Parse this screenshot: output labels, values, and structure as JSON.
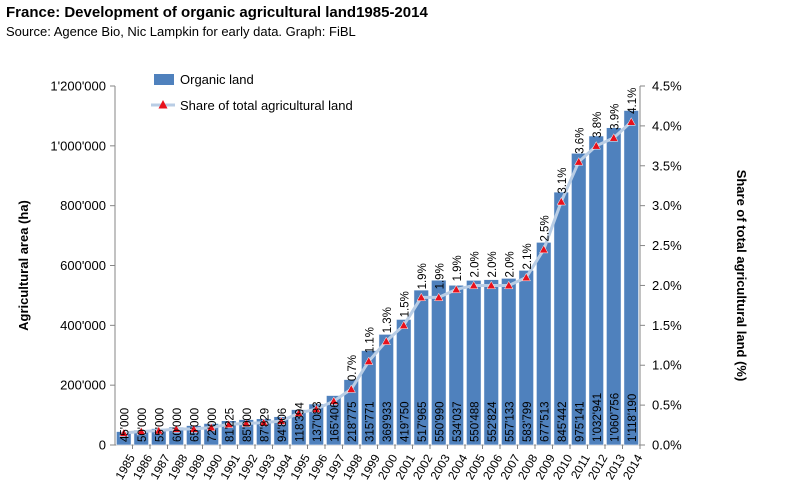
{
  "header": {
    "title": "France: Development of organic agricultural land1985-2014",
    "subtitle": "Source: Agence Bio, Nic Lampkin for early data. Graph: FiBL"
  },
  "chart_data": {
    "type": "bar",
    "categories": [
      "1985",
      "1986",
      "1987",
      "1988",
      "1989",
      "1990",
      "1991",
      "1992",
      "1993",
      "1994",
      "1995",
      "1996",
      "1997",
      "1998",
      "1999",
      "2000",
      "2001",
      "2002",
      "2003",
      "2004",
      "2005",
      "2006",
      "2007",
      "2008",
      "2009",
      "2010",
      "2011",
      "2012",
      "2013",
      "2014"
    ],
    "series": [
      {
        "name": "Organic land",
        "type": "bar",
        "axis": "left",
        "color": "#4f81bd",
        "values": [
          45000,
          50000,
          55000,
          60000,
          65000,
          72000,
          81225,
          85000,
          87829,
          94806,
          118394,
          137083,
          165406,
          218775,
          315771,
          369933,
          419750,
          517965,
          550990,
          534037,
          550488,
          552824,
          557133,
          583799,
          677513,
          845442,
          975141,
          1032941,
          1060756,
          1118190
        ],
        "labels": [
          "45'000",
          "50'000",
          "55'000",
          "60'000",
          "65'000",
          "72'000",
          "81'225",
          "85'000",
          "87'829",
          "94'806",
          "118'394",
          "137'083",
          "165'406",
          "218'775",
          "315'771",
          "369'933",
          "419'750",
          "517'965",
          "550'990",
          "534'037",
          "550'488",
          "552'824",
          "557'133",
          "583'799",
          "677'513",
          "845'442",
          "975'141",
          "1'032'941",
          "1'060'756",
          "1'118'190"
        ]
      },
      {
        "name": "Share of total agricultural land",
        "type": "line",
        "axis": "right",
        "color": "#b9cde5",
        "marker_color": "#e8111c",
        "values": [
          0.15,
          0.17,
          0.18,
          0.2,
          0.2,
          0.22,
          0.26,
          0.27,
          0.28,
          0.3,
          0.4,
          0.45,
          0.55,
          0.7,
          1.05,
          1.3,
          1.5,
          1.85,
          1.85,
          1.95,
          2.0,
          2.0,
          2.0,
          2.1,
          2.45,
          3.05,
          3.55,
          3.75,
          3.85,
          4.05
        ],
        "labels": [
          "",
          "",
          "",
          "",
          "",
          "",
          "",
          "",
          "",
          "",
          "",
          "",
          "",
          "0.7%",
          "1.1%",
          "1.3%",
          "1.5%",
          "1.9%",
          "1.9%",
          "1.9%",
          "2.0%",
          "2.0%",
          "2.0%",
          "2.1%",
          "2.5%",
          "3.1%",
          "3.6%",
          "3.8%",
          "3.9%",
          "4.1%"
        ]
      }
    ],
    "ylabel": "Agricultural area (ha)",
    "ylabel_right": "Share of total agricultural land (%)",
    "ylim": [
      0,
      1200000
    ],
    "ylim_right": [
      0,
      4.5
    ],
    "yticks": [
      {
        "value": 0,
        "label": "0"
      },
      {
        "value": 200000,
        "label": "200'000"
      },
      {
        "value": 400000,
        "label": "400'000"
      },
      {
        "value": 600000,
        "label": "600'000"
      },
      {
        "value": 800000,
        "label": "800'000"
      },
      {
        "value": 1000000,
        "label": "1'000'000"
      },
      {
        "value": 1200000,
        "label": "1'200'000"
      }
    ],
    "yticks_right": [
      {
        "value": 0,
        "label": "0.0%"
      },
      {
        "value": 0.5,
        "label": "0.5%"
      },
      {
        "value": 1.0,
        "label": "1.0%"
      },
      {
        "value": 1.5,
        "label": "1.5%"
      },
      {
        "value": 2.0,
        "label": "2.0%"
      },
      {
        "value": 2.5,
        "label": "2.5%"
      },
      {
        "value": 3.0,
        "label": "3.0%"
      },
      {
        "value": 3.5,
        "label": "3.5%"
      },
      {
        "value": 4.0,
        "label": "4.0%"
      },
      {
        "value": 4.5,
        "label": "4.5%"
      }
    ],
    "grid": false,
    "legend_position": "top-left"
  }
}
